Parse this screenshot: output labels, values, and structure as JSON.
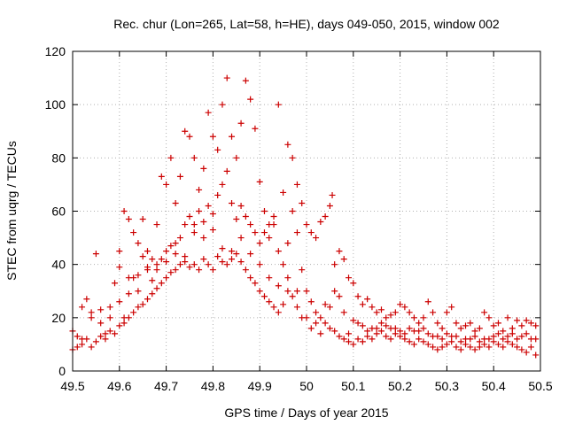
{
  "chart_data": {
    "type": "scatter",
    "title": "Rec. chur (Lon=265, Lat=58, h=HE), days 049-050, 2015, window 002",
    "xlabel": "GPS time / Days of year 2015",
    "ylabel": "STEC from uqrg / TECUs",
    "xlim": [
      49.5,
      50.5
    ],
    "ylim": [
      0,
      120
    ],
    "x_ticks": [
      "49.5",
      "49.6",
      "49.7",
      "49.8",
      "49.9",
      "50",
      "50.1",
      "50.2",
      "50.3",
      "50.4",
      "50.5"
    ],
    "y_ticks": [
      "0",
      "20",
      "40",
      "60",
      "80",
      "100",
      "120"
    ],
    "grid": true,
    "marker": "+",
    "color": "#cc0000",
    "series": [
      {
        "points": [
          [
            49.5,
            15
          ],
          [
            49.51,
            13
          ],
          [
            49.52,
            12
          ],
          [
            49.53,
            27
          ],
          [
            49.54,
            22
          ],
          [
            49.55,
            44
          ],
          [
            49.56,
            18
          ],
          [
            49.57,
            14
          ],
          [
            49.58,
            20
          ],
          [
            49.59,
            33
          ],
          [
            49.6,
            26
          ],
          [
            49.61,
            20
          ],
          [
            49.62,
            29
          ],
          [
            49.63,
            35
          ],
          [
            49.64,
            30
          ],
          [
            49.65,
            43
          ],
          [
            49.66,
            38
          ],
          [
            49.67,
            34
          ],
          [
            49.68,
            40
          ],
          [
            49.69,
            42
          ],
          [
            49.7,
            41
          ],
          [
            49.71,
            47
          ],
          [
            49.72,
            44
          ],
          [
            49.73,
            50
          ],
          [
            49.74,
            55
          ],
          [
            49.75,
            58
          ],
          [
            49.76,
            52
          ],
          [
            49.77,
            60
          ],
          [
            49.78,
            56
          ],
          [
            49.79,
            62
          ],
          [
            49.8,
            59
          ],
          [
            49.81,
            66
          ],
          [
            49.82,
            70
          ],
          [
            49.83,
            75
          ],
          [
            49.84,
            63
          ],
          [
            49.85,
            57
          ],
          [
            49.86,
            62
          ],
          [
            49.87,
            58
          ],
          [
            49.88,
            55
          ],
          [
            49.89,
            52
          ],
          [
            49.9,
            48
          ],
          [
            49.91,
            52
          ],
          [
            49.92,
            55
          ],
          [
            49.93,
            58
          ],
          [
            49.94,
            45
          ],
          [
            49.95,
            40
          ],
          [
            49.96,
            48
          ],
          [
            49.97,
            60
          ],
          [
            49.98,
            52
          ],
          [
            49.99,
            38
          ],
          [
            49.5,
            8
          ],
          [
            49.51,
            9
          ],
          [
            49.52,
            10
          ],
          [
            49.53,
            12
          ],
          [
            49.54,
            9
          ],
          [
            49.55,
            11
          ],
          [
            49.56,
            13
          ],
          [
            49.57,
            12
          ],
          [
            49.58,
            15
          ],
          [
            49.59,
            14
          ],
          [
            49.6,
            17
          ],
          [
            49.61,
            18
          ],
          [
            49.62,
            20
          ],
          [
            49.63,
            22
          ],
          [
            49.64,
            24
          ],
          [
            49.65,
            25
          ],
          [
            49.66,
            27
          ],
          [
            49.67,
            29
          ],
          [
            49.68,
            31
          ],
          [
            49.69,
            33
          ],
          [
            49.7,
            35
          ],
          [
            49.71,
            37
          ],
          [
            49.72,
            38
          ],
          [
            49.73,
            40
          ],
          [
            49.74,
            41
          ],
          [
            49.75,
            39
          ],
          [
            49.76,
            40
          ],
          [
            49.77,
            38
          ],
          [
            49.78,
            42
          ],
          [
            49.79,
            40
          ],
          [
            49.8,
            38
          ],
          [
            49.81,
            43
          ],
          [
            49.82,
            41
          ],
          [
            49.83,
            40
          ],
          [
            49.84,
            42
          ],
          [
            49.85,
            44
          ],
          [
            49.86,
            41
          ],
          [
            49.87,
            38
          ],
          [
            49.88,
            35
          ],
          [
            49.89,
            33
          ],
          [
            49.9,
            30
          ],
          [
            49.91,
            28
          ],
          [
            49.92,
            26
          ],
          [
            49.93,
            24
          ],
          [
            49.94,
            22
          ],
          [
            49.95,
            25
          ],
          [
            49.96,
            30
          ],
          [
            49.97,
            28
          ],
          [
            49.98,
            24
          ],
          [
            49.99,
            20
          ],
          [
            49.52,
            24
          ],
          [
            49.54,
            20
          ],
          [
            49.56,
            23
          ],
          [
            49.58,
            24
          ],
          [
            49.6,
            45
          ],
          [
            49.61,
            60
          ],
          [
            49.62,
            57
          ],
          [
            49.63,
            52
          ],
          [
            49.64,
            48
          ],
          [
            49.65,
            57
          ],
          [
            49.66,
            45
          ],
          [
            49.67,
            42
          ],
          [
            49.68,
            55
          ],
          [
            49.69,
            73
          ],
          [
            49.7,
            70
          ],
          [
            49.71,
            80
          ],
          [
            49.72,
            63
          ],
          [
            49.73,
            73
          ],
          [
            49.74,
            90
          ],
          [
            49.75,
            88
          ],
          [
            49.76,
            80
          ],
          [
            49.77,
            68
          ],
          [
            49.78,
            76
          ],
          [
            49.79,
            97
          ],
          [
            49.8,
            88
          ],
          [
            49.81,
            83
          ],
          [
            49.82,
            100
          ],
          [
            49.83,
            110
          ],
          [
            49.84,
            88
          ],
          [
            49.85,
            80
          ],
          [
            49.86,
            93
          ],
          [
            49.87,
            109
          ],
          [
            49.88,
            102
          ],
          [
            49.89,
            91
          ],
          [
            49.9,
            71
          ],
          [
            49.91,
            60
          ],
          [
            49.92,
            50
          ],
          [
            49.93,
            55
          ],
          [
            49.94,
            100
          ],
          [
            49.95,
            67
          ],
          [
            49.96,
            85
          ],
          [
            49.97,
            80
          ],
          [
            49.98,
            70
          ],
          [
            49.99,
            63
          ],
          [
            49.6,
            39
          ],
          [
            49.62,
            35
          ],
          [
            49.64,
            36
          ],
          [
            49.66,
            39
          ],
          [
            49.68,
            38
          ],
          [
            49.7,
            45
          ],
          [
            49.72,
            48
          ],
          [
            49.74,
            43
          ],
          [
            49.76,
            55
          ],
          [
            49.78,
            50
          ],
          [
            49.8,
            53
          ],
          [
            49.82,
            46
          ],
          [
            49.84,
            45
          ],
          [
            49.86,
            50
          ],
          [
            49.88,
            44
          ],
          [
            49.9,
            40
          ],
          [
            49.92,
            35
          ],
          [
            49.94,
            32
          ],
          [
            49.96,
            35
          ],
          [
            49.98,
            30
          ],
          [
            50,
            55
          ],
          [
            50.01,
            52
          ],
          [
            50.02,
            50
          ],
          [
            50.03,
            56
          ],
          [
            50.04,
            58
          ],
          [
            50.05,
            62
          ],
          [
            50.055,
            66
          ],
          [
            50.06,
            40
          ],
          [
            50.07,
            45
          ],
          [
            50.08,
            42
          ],
          [
            50.09,
            35
          ],
          [
            50.1,
            33
          ],
          [
            50.11,
            28
          ],
          [
            50.12,
            25
          ],
          [
            50.13,
            27
          ],
          [
            50.14,
            24
          ],
          [
            50.15,
            22
          ],
          [
            50.16,
            23
          ],
          [
            50.17,
            20
          ],
          [
            50.18,
            21
          ],
          [
            50.19,
            22
          ],
          [
            50.2,
            25
          ],
          [
            50.21,
            24
          ],
          [
            50.22,
            22
          ],
          [
            50.23,
            20
          ],
          [
            50.24,
            18
          ],
          [
            50.25,
            20
          ],
          [
            50.26,
            26
          ],
          [
            50.27,
            22
          ],
          [
            50.28,
            18
          ],
          [
            50.29,
            16
          ],
          [
            50.3,
            22
          ],
          [
            50.31,
            24
          ],
          [
            50.32,
            18
          ],
          [
            50.33,
            16
          ],
          [
            50.34,
            17
          ],
          [
            50.35,
            18
          ],
          [
            50.36,
            15
          ],
          [
            50.37,
            16
          ],
          [
            50.38,
            22
          ],
          [
            50.39,
            20
          ],
          [
            50.4,
            17
          ],
          [
            50.41,
            18
          ],
          [
            50.42,
            15
          ],
          [
            50.43,
            20
          ],
          [
            50.44,
            16
          ],
          [
            50.45,
            19
          ],
          [
            50.46,
            17
          ],
          [
            50.47,
            19
          ],
          [
            50.48,
            18
          ],
          [
            50.49,
            17
          ],
          [
            50,
            30
          ],
          [
            50.01,
            26
          ],
          [
            50.02,
            22
          ],
          [
            50.03,
            20
          ],
          [
            50.04,
            18
          ],
          [
            50.05,
            16
          ],
          [
            50.06,
            15
          ],
          [
            50.07,
            13
          ],
          [
            50.08,
            12
          ],
          [
            50.09,
            11
          ],
          [
            50.1,
            10
          ],
          [
            50.11,
            12
          ],
          [
            50.12,
            11
          ],
          [
            50.13,
            13
          ],
          [
            50.14,
            12
          ],
          [
            50.15,
            14
          ],
          [
            50.16,
            15
          ],
          [
            50.17,
            13
          ],
          [
            50.18,
            12
          ],
          [
            50.19,
            14
          ],
          [
            50.2,
            13
          ],
          [
            50.21,
            12
          ],
          [
            50.22,
            11
          ],
          [
            50.23,
            10
          ],
          [
            50.24,
            12
          ],
          [
            50.25,
            11
          ],
          [
            50.26,
            10
          ],
          [
            50.27,
            9
          ],
          [
            50.28,
            8
          ],
          [
            50.29,
            9
          ],
          [
            50.3,
            10
          ],
          [
            50.31,
            11
          ],
          [
            50.32,
            9
          ],
          [
            50.33,
            8
          ],
          [
            50.34,
            10
          ],
          [
            50.35,
            9
          ],
          [
            50.36,
            8
          ],
          [
            50.37,
            9
          ],
          [
            50.38,
            10
          ],
          [
            50.39,
            9
          ],
          [
            50.4,
            11
          ],
          [
            50.41,
            10
          ],
          [
            50.42,
            9
          ],
          [
            50.43,
            11
          ],
          [
            50.44,
            10
          ],
          [
            50.45,
            9
          ],
          [
            50.46,
            8
          ],
          [
            50.47,
            7
          ],
          [
            50.48,
            9
          ],
          [
            50.49,
            6
          ],
          [
            50.0,
            20
          ],
          [
            50.02,
            18
          ],
          [
            50.04,
            25
          ],
          [
            50.06,
            30
          ],
          [
            50.08,
            22
          ],
          [
            50.1,
            19
          ],
          [
            50.12,
            17
          ],
          [
            50.14,
            16
          ],
          [
            50.16,
            18
          ],
          [
            50.18,
            16
          ],
          [
            50.2,
            15
          ],
          [
            50.22,
            16
          ],
          [
            50.24,
            15
          ],
          [
            50.26,
            14
          ],
          [
            50.28,
            13
          ],
          [
            50.3,
            14
          ],
          [
            50.32,
            13
          ],
          [
            50.34,
            12
          ],
          [
            50.36,
            13
          ],
          [
            50.38,
            12
          ],
          [
            50.4,
            13
          ],
          [
            50.42,
            12
          ],
          [
            50.44,
            14
          ],
          [
            50.46,
            13
          ],
          [
            50.48,
            12
          ],
          [
            50.01,
            16
          ],
          [
            50.03,
            14
          ],
          [
            50.05,
            24
          ],
          [
            50.07,
            28
          ],
          [
            50.09,
            14
          ],
          [
            50.11,
            18
          ],
          [
            50.13,
            15
          ],
          [
            50.15,
            16
          ],
          [
            50.17,
            17
          ],
          [
            50.19,
            16
          ],
          [
            50.21,
            14
          ],
          [
            50.23,
            15
          ],
          [
            50.25,
            16
          ],
          [
            50.27,
            13
          ],
          [
            50.29,
            12
          ],
          [
            50.31,
            13
          ],
          [
            50.33,
            11
          ],
          [
            50.35,
            12
          ],
          [
            50.37,
            11
          ],
          [
            50.39,
            12
          ],
          [
            50.41,
            14
          ],
          [
            50.43,
            13
          ],
          [
            50.45,
            12
          ],
          [
            50.47,
            14
          ],
          [
            50.49,
            12
          ]
        ]
      }
    ]
  }
}
